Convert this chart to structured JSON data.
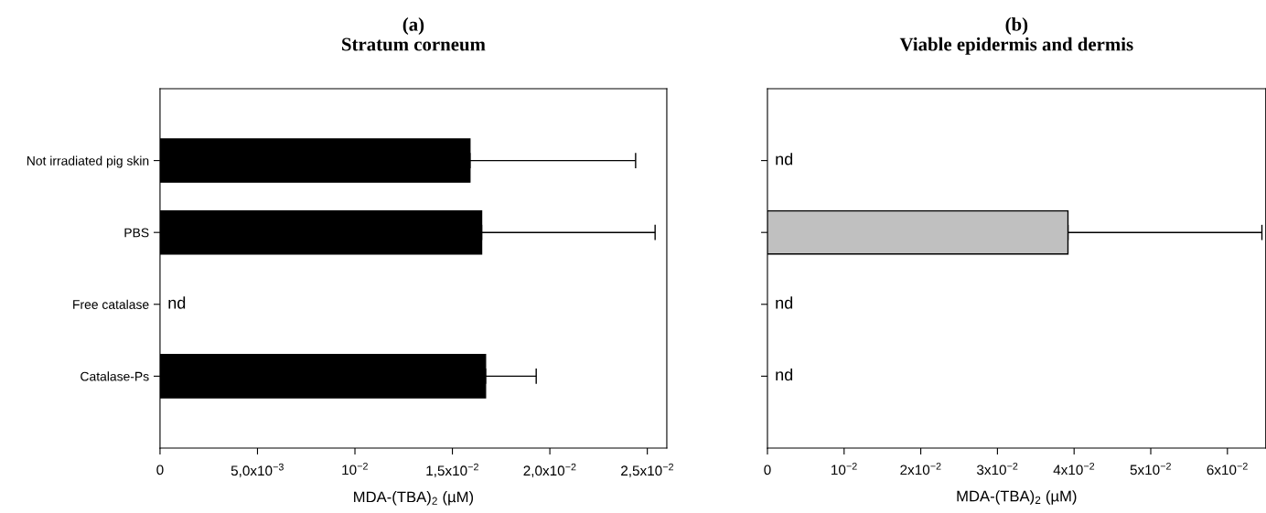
{
  "chart_data": [
    {
      "type": "bar",
      "orientation": "horizontal",
      "title": "(a)\nStratum corneum",
      "xlabel": "MDA-(TBA)$_{2}$ (µM)",
      "categories": [
        "Not irradiated pig skin",
        "PBS",
        "Free catalase",
        "Catalase-Ps"
      ],
      "values": [
        0.0159,
        0.0165,
        null,
        0.0167
      ],
      "errors": [
        [
          0.0159,
          0.0244
        ],
        [
          0.0165,
          0.0254
        ],
        null,
        [
          0.0167,
          0.0193
        ]
      ],
      "color": "#000000",
      "xlim": [
        0,
        0.026
      ],
      "xticks": [
        0,
        {
          "value": 0.005,
          "label": "5,0x10$^{−3}$"
        },
        {
          "value": 0.01,
          "label": "10$^{−2}$"
        },
        {
          "value": 0.015,
          "label": "1,5x10$^{−2}$"
        },
        {
          "value": 0.02,
          "label": "2,0x10$^{−2}$"
        },
        {
          "value": 0.025,
          "label": "2,5x10$^{−2}$"
        }
      ],
      "annotations": [
        "nd"
      ],
      "grid": false,
      "legend": false
    },
    {
      "type": "bar",
      "orientation": "horizontal",
      "title": "(b)\nViable epidermis and dermis",
      "xlabel": "MDA-(TBA)$_{2}$ (µM)",
      "categories": [
        null,
        null,
        null,
        null
      ],
      "values": [
        null,
        0.0392,
        null,
        null
      ],
      "errors": [
        null,
        [
          0.0392,
          0.0645
        ],
        null,
        null
      ],
      "color": "#c0c0c0",
      "xlim": [
        0,
        0.065
      ],
      "xticks": [
        0,
        {
          "value": 0.01,
          "label": "10$^{−2}$"
        },
        {
          "value": 0.02,
          "label": "2x10$^{−2}$"
        },
        {
          "value": 0.03,
          "label": "3x10$^{−2}$"
        },
        {
          "value": 0.04,
          "label": "4x10$^{−2}$"
        },
        {
          "value": 0.05,
          "label": "5x10$^{−2}$"
        },
        {
          "value": 0.06,
          "label": "6x10$^{−2}$"
        }
      ],
      "annotations": [
        "nd",
        "nd",
        "nd"
      ],
      "tick_labels": "x",
      "grid": false,
      "legend": false
    }
  ]
}
